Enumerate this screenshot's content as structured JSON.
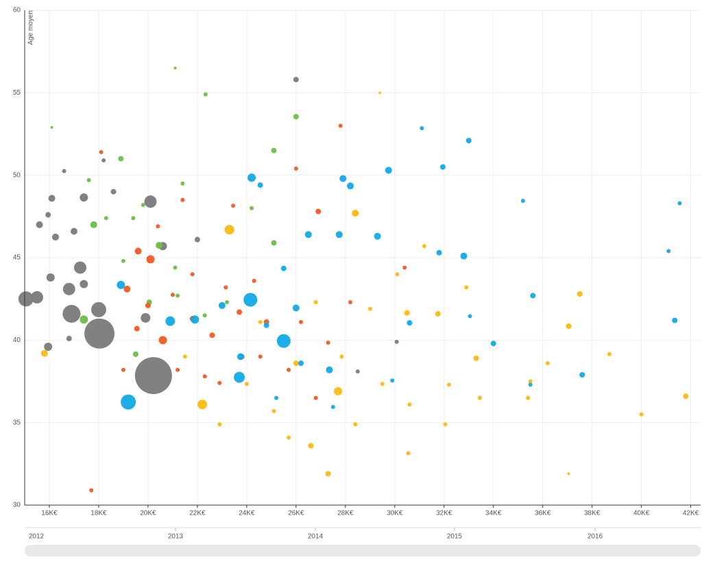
{
  "chart_data": {
    "type": "scatter",
    "y_label": "Age moyen",
    "xlim": [
      15000,
      42400
    ],
    "ylim": [
      30,
      60
    ],
    "xticks": [
      {
        "value": 16000,
        "label": "16K€"
      },
      {
        "value": 18000,
        "label": "18K€"
      },
      {
        "value": 20000,
        "label": "20K€"
      },
      {
        "value": 22000,
        "label": "22K€"
      },
      {
        "value": 24000,
        "label": "24K€"
      },
      {
        "value": 26000,
        "label": "26K€"
      },
      {
        "value": 28000,
        "label": "28K€"
      },
      {
        "value": 30000,
        "label": "30K€"
      },
      {
        "value": 32000,
        "label": "32K€"
      },
      {
        "value": 34000,
        "label": "34K€"
      },
      {
        "value": 36000,
        "label": "36K€"
      },
      {
        "value": 38000,
        "label": "38K€"
      },
      {
        "value": 40000,
        "label": "40K€"
      },
      {
        "value": 42000,
        "label": "42K€"
      }
    ],
    "yticks": [
      30,
      35,
      40,
      45,
      50,
      55,
      60
    ],
    "grid": true,
    "series": [
      {
        "color": "#7a7a7a",
        "x": [
          18030,
          20220,
          16900,
          18000,
          17250,
          16800,
          20100,
          15500,
          15050,
          19900,
          20600,
          26000,
          16050,
          15950,
          17400,
          16250,
          17000,
          15600,
          16800,
          18600,
          22000,
          16600,
          18200,
          16100,
          15950,
          30080,
          28500,
          17400
        ],
        "values": [
          40.4,
          37.85,
          41.6,
          41.85,
          44.4,
          43.1,
          48.4,
          42.6,
          42.5,
          41.35,
          45.7,
          55.8,
          43.8,
          39.6,
          48.65,
          46.25,
          46.6,
          47.0,
          40.1,
          49.0,
          46.1,
          50.25,
          50.9,
          48.6,
          47.6,
          39.9,
          38.1,
          43.4
        ],
        "sizes": [
          22,
          27,
          13,
          11,
          9,
          9,
          9,
          9,
          11,
          7,
          6,
          4,
          6,
          6,
          6,
          5,
          5,
          5,
          4,
          4,
          4,
          3,
          3,
          5,
          4,
          3,
          3,
          6
        ]
      },
      {
        "color": "#6cbf47",
        "x": [
          22330,
          21100,
          26000,
          25100,
          18900,
          17400,
          17800,
          20450,
          25100,
          16100,
          19400,
          21400,
          18300,
          20050,
          19500,
          21200,
          17600,
          22300,
          23200,
          21100,
          19000,
          19800,
          24200
        ],
        "values": [
          54.9,
          56.5,
          53.55,
          51.5,
          51.0,
          41.25,
          47.0,
          45.75,
          45.9,
          52.9,
          47.4,
          49.5,
          47.4,
          42.3,
          39.15,
          42.7,
          49.7,
          41.5,
          42.3,
          44.4,
          44.8,
          48.2,
          48.0
        ],
        "sizes": [
          3,
          2,
          4,
          4,
          4,
          6,
          5,
          5,
          4,
          2,
          3,
          3,
          3,
          4,
          4,
          3,
          3,
          3,
          3,
          3,
          3,
          3,
          3
        ]
      },
      {
        "color": "#f05a24",
        "x": [
          17700,
          18100,
          20600,
          20100,
          19600,
          19150,
          26900,
          26000,
          27800,
          23700,
          21800,
          22600,
          21400,
          23800,
          24800,
          25700,
          26800,
          22300,
          21200,
          19000,
          28200,
          30400,
          21000,
          23150,
          24300,
          19550,
          21800,
          20000,
          22900,
          24550,
          26200,
          27300,
          20400,
          23450
        ],
        "values": [
          30.9,
          51.4,
          40.0,
          44.9,
          45.4,
          43.1,
          47.8,
          50.4,
          53.0,
          41.7,
          41.3,
          40.3,
          48.5,
          39.0,
          41.1,
          38.2,
          36.5,
          37.8,
          38.2,
          38.2,
          42.3,
          44.4,
          42.75,
          43.2,
          43.6,
          40.7,
          44.0,
          42.1,
          37.4,
          39.0,
          41.1,
          39.85,
          46.9,
          48.15
        ],
        "sizes": [
          3,
          3,
          6,
          6,
          5,
          5,
          4,
          3,
          3,
          4,
          4,
          4,
          3,
          4,
          4,
          3,
          3,
          3,
          3,
          3,
          3,
          3,
          3,
          3,
          3,
          4,
          3,
          4,
          3,
          3,
          3,
          3,
          3,
          3
        ]
      },
      {
        "color": "#fdb913",
        "x": [
          22200,
          23300,
          27700,
          28400,
          27300,
          41800,
          40000,
          37500,
          37050,
          35500,
          33300,
          31750,
          30500,
          29400,
          37050,
          15800,
          26000,
          25100,
          26600,
          28400,
          29500,
          30600,
          32050,
          33450,
          35400,
          36200,
          38700,
          25700,
          24000,
          22900,
          21500,
          24550,
          26800,
          27850,
          29000,
          30100,
          31200,
          32900,
          30550,
          32200
        ],
        "values": [
          36.1,
          46.7,
          36.9,
          47.7,
          31.9,
          36.6,
          35.5,
          42.8,
          40.85,
          37.5,
          38.9,
          41.6,
          41.65,
          55.0,
          31.9,
          39.2,
          38.6,
          35.7,
          33.6,
          34.9,
          37.35,
          36.1,
          34.9,
          36.5,
          36.5,
          38.6,
          39.15,
          34.1,
          37.35,
          34.9,
          39.0,
          41.1,
          42.3,
          39.0,
          41.9,
          44.0,
          45.7,
          43.2,
          33.15,
          37.3
        ],
        "sizes": [
          7,
          7,
          6,
          5,
          4,
          4,
          3,
          4,
          4,
          3,
          4,
          4,
          4,
          2,
          2,
          5,
          4,
          3,
          4,
          3,
          3,
          3,
          3,
          3,
          3,
          3,
          3,
          3,
          3,
          3,
          3,
          3,
          3,
          3,
          3,
          3,
          3,
          3,
          3,
          3
        ]
      },
      {
        "color": "#12a9e6",
        "x": [
          19200,
          24150,
          25500,
          23700,
          20900,
          24200,
          29750,
          29300,
          28200,
          27750,
          31950,
          33000,
          31100,
          32800,
          31800,
          35200,
          35600,
          37600,
          41350,
          41550,
          41100,
          34000,
          30600,
          27350,
          26200,
          23750,
          18900,
          21900,
          25500,
          26000,
          27500,
          29900,
          23000,
          24800,
          26500,
          24550,
          27900,
          25200,
          35500,
          33050
        ],
        "values": [
          36.25,
          42.45,
          39.95,
          37.75,
          41.15,
          49.85,
          50.3,
          46.3,
          49.35,
          46.4,
          50.5,
          52.1,
          52.85,
          45.1,
          45.3,
          48.45,
          42.7,
          37.9,
          41.2,
          48.3,
          45.4,
          39.8,
          41.05,
          38.2,
          38.6,
          39.0,
          43.35,
          41.25,
          44.35,
          41.95,
          35.95,
          37.55,
          42.1,
          40.9,
          46.4,
          49.4,
          49.8,
          36.5,
          37.3,
          41.45
        ],
        "sizes": [
          11,
          10,
          10,
          8,
          7,
          6,
          5,
          5,
          5,
          5,
          4,
          4,
          3,
          5,
          4,
          3,
          4,
          4,
          4,
          3,
          3,
          4,
          4,
          5,
          4,
          5,
          6,
          6,
          4,
          5,
          3,
          3,
          5,
          4,
          5,
          4,
          5,
          3,
          3,
          3
        ]
      }
    ]
  },
  "timeline": {
    "labels": [
      "2012",
      "2013",
      "2014",
      "2015",
      "2016"
    ]
  }
}
